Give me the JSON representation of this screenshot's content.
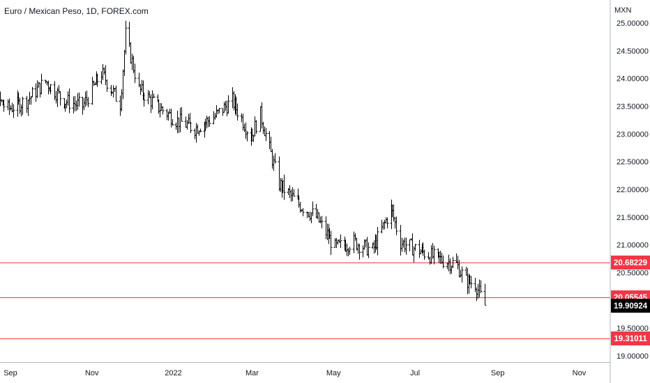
{
  "header": {
    "title": "Euro / Mexican Peso, 1D, FOREX.com"
  },
  "colors": {
    "candle": "#000000",
    "hline": "#f23645",
    "badge_red": "#f23645",
    "badge_last": "#000000",
    "axis_text": "#131722",
    "axis_line": "#b2b5be",
    "background": "#ffffff"
  },
  "chart_data": {
    "type": "ohlc",
    "title": "Euro / Mexican Peso, 1D, FOREX.com",
    "unit_label": "MXN",
    "ylim": [
      19.0,
      25.0
    ],
    "y_ticks": [
      "25.00000",
      "24.50000",
      "24.00000",
      "23.50000",
      "23.00000",
      "22.50000",
      "22.00000",
      "21.50000",
      "21.00000",
      "20.50000",
      "20.00000",
      "19.50000",
      "19.00000"
    ],
    "x_ticks": [
      "Sep",
      "Nov",
      "2022",
      "Mar",
      "May",
      "Jul",
      "Sep",
      "Nov"
    ],
    "x_tick_dates": [
      "2021-09-01",
      "2021-11-01",
      "2022-01-01",
      "2022-03-01",
      "2022-05-01",
      "2022-07-01",
      "2022-09-01",
      "2022-11-01"
    ],
    "grid": false,
    "series": [
      {
        "name": "",
        "x": [
          "2021-08-02",
          "2021-08-16",
          "2021-08-30",
          "2021-09-13",
          "2021-09-27",
          "2021-10-11",
          "2021-10-25",
          "2021-11-08",
          "2021-11-22",
          "2021-11-26",
          "2021-12-06",
          "2021-12-20",
          "2022-01-03",
          "2022-01-17",
          "2022-01-31",
          "2022-02-14",
          "2022-02-28",
          "2022-03-07",
          "2022-03-21",
          "2022-04-04",
          "2022-04-18",
          "2022-05-02",
          "2022-05-16",
          "2022-05-30",
          "2022-06-13",
          "2022-06-20",
          "2022-07-04",
          "2022-07-18",
          "2022-08-01",
          "2022-08-08",
          "2022-08-15",
          "2022-08-22"
        ],
        "close": [
          23.95,
          23.75,
          23.45,
          23.6,
          23.95,
          23.6,
          23.5,
          24.1,
          23.55,
          24.8,
          23.8,
          23.5,
          23.25,
          23.1,
          23.3,
          23.6,
          22.95,
          23.35,
          22.1,
          21.75,
          21.5,
          20.95,
          21.05,
          20.9,
          21.65,
          21.05,
          20.9,
          20.75,
          20.65,
          20.35,
          20.3,
          19.91
        ]
      }
    ],
    "hlines": [
      20.68229,
      20.05545,
      19.31011
    ],
    "price_labels": [
      {
        "text": "20.68229",
        "kind": "level"
      },
      {
        "text": "20.05545",
        "kind": "level"
      },
      {
        "text": "19.90924",
        "kind": "last"
      },
      {
        "text": "19.31011",
        "kind": "level"
      }
    ]
  }
}
